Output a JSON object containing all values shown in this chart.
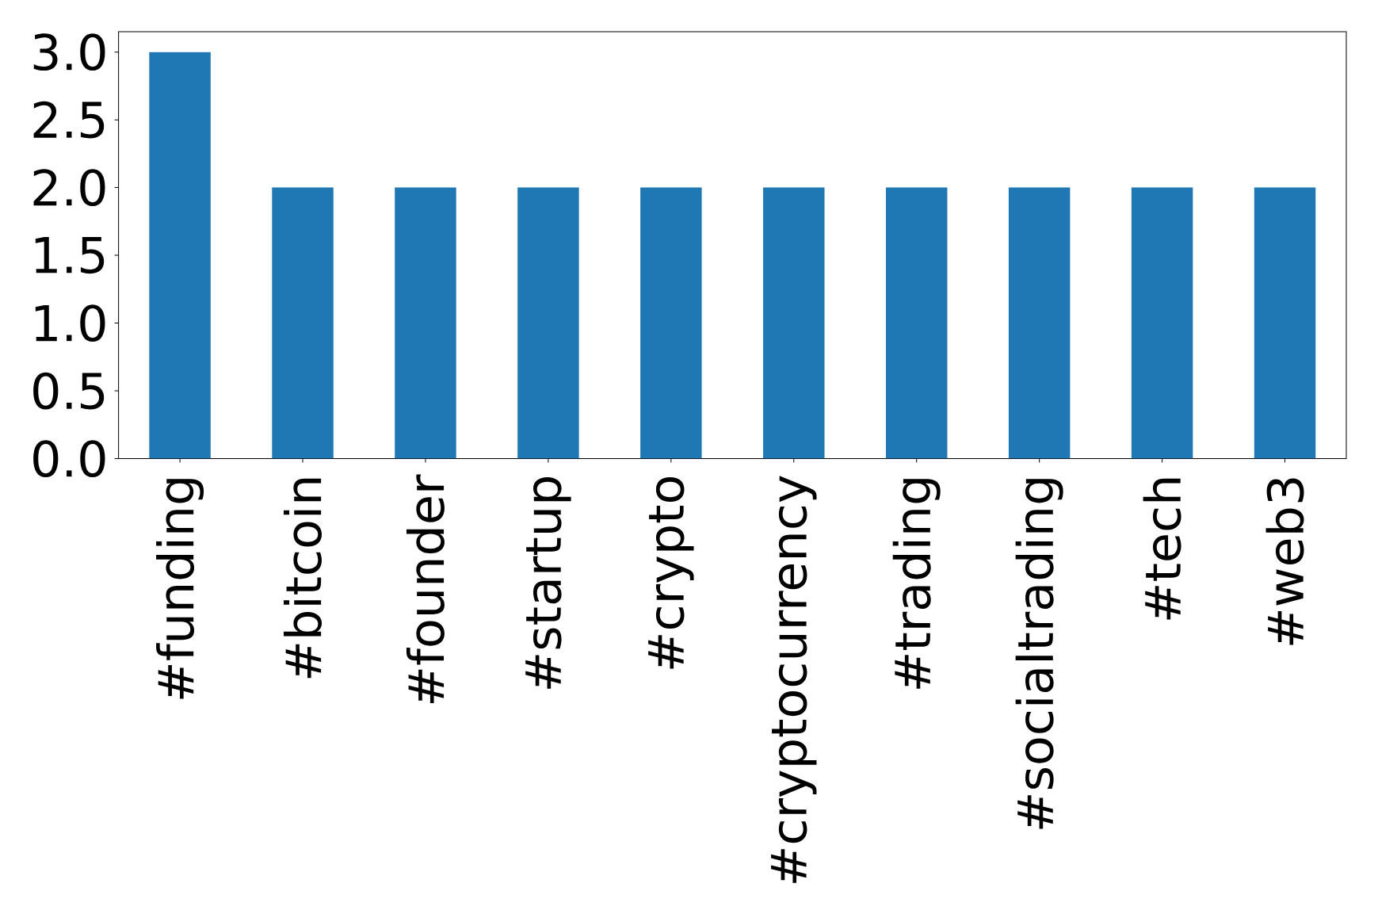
{
  "chart_data": {
    "type": "bar",
    "categories": [
      "#funding",
      "#bitcoin",
      "#founder",
      "#startup",
      "#crypto",
      "#cryptocurrency",
      "#trading",
      "#socialtrading",
      "#tech",
      "#web3"
    ],
    "values": [
      3,
      2,
      2,
      2,
      2,
      2,
      2,
      2,
      2,
      2
    ],
    "color": "#1f77b4",
    "ylim": [
      0,
      3.15
    ],
    "yticks": [
      {
        "value": 0,
        "label": "0.0"
      },
      {
        "value": 0.5,
        "label": "0.5"
      },
      {
        "value": 1,
        "label": "1.0"
      },
      {
        "value": 1.5,
        "label": "1.5"
      },
      {
        "value": 2,
        "label": "2.0"
      },
      {
        "value": 2.5,
        "label": "2.5"
      },
      {
        "value": 3,
        "label": "3.0"
      }
    ]
  }
}
